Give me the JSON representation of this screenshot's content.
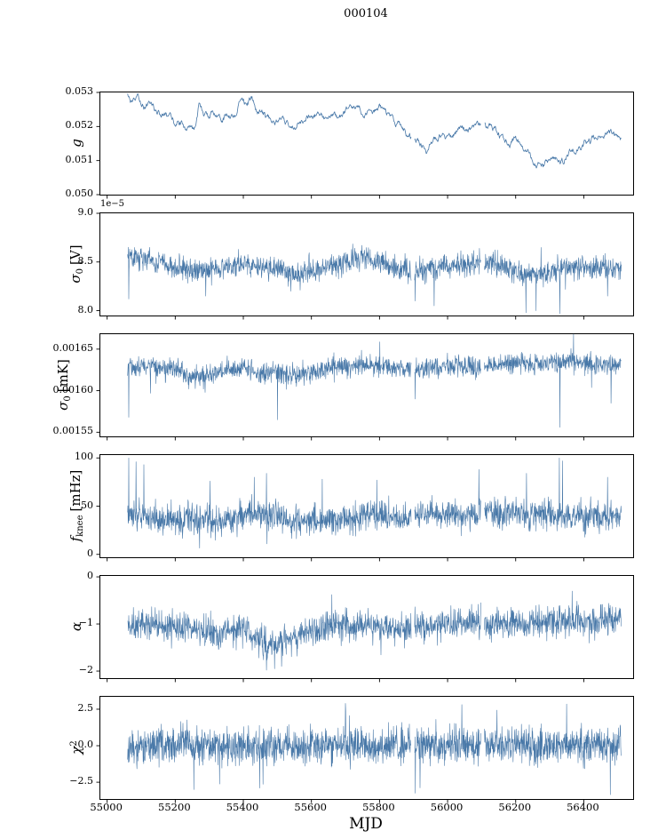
{
  "title": "000104",
  "xlabel": "MJD",
  "color": "#4878a8",
  "axis": {
    "xlim": [
      54980,
      56545
    ],
    "xticks": [
      55000,
      55200,
      55400,
      55600,
      55800,
      56000,
      56200,
      56400
    ],
    "data_xrange": [
      55060,
      56510
    ],
    "data_gaps": [
      [
        55893,
        55903
      ],
      [
        56098,
        56108
      ]
    ]
  },
  "chart_data": [
    {
      "name": "g",
      "type": "line",
      "ylabel": {
        "text": "g",
        "sub": "",
        "sup": "",
        "unit": ""
      },
      "offset_text": "",
      "ylim": [
        0.05,
        0.053
      ],
      "ytick_values": [
        0.05,
        0.051,
        0.052,
        0.053
      ],
      "ytick_labels": [
        "0.050",
        "0.051",
        "0.052",
        "0.053"
      ],
      "trend": {
        "x": [
          55060,
          55075,
          55090,
          55110,
          55130,
          55150,
          55170,
          55200,
          55220,
          55240,
          55255,
          55270,
          55285,
          55300,
          55320,
          55340,
          55360,
          55380,
          55395,
          55410,
          55425,
          55440,
          55460,
          55480,
          55500,
          55520,
          55540,
          55560,
          55580,
          55600,
          55620,
          55640,
          55660,
          55680,
          55700,
          55720,
          55740,
          55760,
          55780,
          55800,
          55820,
          55840,
          55860,
          55880,
          55900,
          55920,
          55940,
          55960,
          55980,
          56000,
          56020,
          56040,
          56060,
          56080,
          56100,
          56120,
          56140,
          56160,
          56180,
          56200,
          56220,
          56240,
          56260,
          56280,
          56300,
          56320,
          56340,
          56360,
          56380,
          56400,
          56420,
          56440,
          56460,
          56480,
          56500
        ],
        "y": [
          0.0529,
          0.0526,
          0.0528,
          0.0526,
          0.0527,
          0.0524,
          0.0523,
          0.0521,
          0.0521,
          0.0519,
          0.0518,
          0.0527,
          0.0523,
          0.0523,
          0.0524,
          0.0523,
          0.0524,
          0.0523,
          0.0529,
          0.0526,
          0.0528,
          0.0524,
          0.0523,
          0.0522,
          0.0522,
          0.0521,
          0.052,
          0.0521,
          0.0522,
          0.0523,
          0.0524,
          0.0522,
          0.0522,
          0.0523,
          0.0524,
          0.0525,
          0.0525,
          0.0524,
          0.0524,
          0.0526,
          0.0524,
          0.0522,
          0.052,
          0.0518,
          0.0516,
          0.0515,
          0.0513,
          0.0516,
          0.0517,
          0.0517,
          0.0518,
          0.0519,
          0.0519,
          0.052,
          0.0521,
          0.052,
          0.052,
          0.0516,
          0.0515,
          0.0516,
          0.0514,
          0.0512,
          0.0509,
          0.0508,
          0.051,
          0.0511,
          0.051,
          0.0513,
          0.0514,
          0.0515,
          0.0516,
          0.0516,
          0.0517,
          0.0518,
          0.0517
        ]
      },
      "noise": 0.00012,
      "smooth": true,
      "samples": 1100,
      "spikes": []
    },
    {
      "name": "sigma0_V",
      "type": "line",
      "ylabel": {
        "text": "σ",
        "sub": "0",
        "sup": "",
        "unit": "[V]"
      },
      "offset_text": "1e−5",
      "ylim": [
        7.95,
        9.0
      ],
      "ytick_values": [
        8.0,
        8.5,
        9.0
      ],
      "ytick_labels": [
        "8.0",
        "8.5",
        "9.0"
      ],
      "trend": {
        "x": [
          55060,
          55100,
          55150,
          55200,
          55250,
          55300,
          55350,
          55400,
          55450,
          55500,
          55550,
          55600,
          55650,
          55700,
          55750,
          55800,
          55850,
          55900,
          55950,
          56000,
          56050,
          56100,
          56150,
          56200,
          56250,
          56300,
          56350,
          56400,
          56450,
          56500
        ],
        "y": [
          8.55,
          8.55,
          8.5,
          8.45,
          8.4,
          8.44,
          8.45,
          8.48,
          8.45,
          8.43,
          8.38,
          8.4,
          8.45,
          8.5,
          8.53,
          8.5,
          8.45,
          8.4,
          8.43,
          8.45,
          8.48,
          8.5,
          8.47,
          8.4,
          8.36,
          8.4,
          8.44,
          8.45,
          8.45,
          8.45
        ]
      },
      "noise": 0.1,
      "smooth": false,
      "samples": 1700,
      "spikes": [
        [
          55063,
          8.12
        ],
        [
          55290,
          8.15
        ],
        [
          55540,
          8.2
        ],
        [
          55905,
          8.1
        ],
        [
          55960,
          8.05
        ],
        [
          56230,
          7.98
        ],
        [
          56260,
          8.0
        ],
        [
          56330,
          7.97
        ],
        [
          56470,
          8.15
        ]
      ]
    },
    {
      "name": "sigma0_mK",
      "type": "line",
      "ylabel": {
        "text": "σ",
        "sub": "0",
        "sup": "",
        "unit": "[mK]"
      },
      "offset_text": "",
      "ylim": [
        0.001545,
        0.001668
      ],
      "ytick_values": [
        0.00155,
        0.0016,
        0.00165
      ],
      "ytick_labels": [
        "0.00155",
        "0.00160",
        "0.00165"
      ],
      "trend": {
        "x": [
          55060,
          55100,
          55150,
          55200,
          55250,
          55300,
          55350,
          55400,
          55450,
          55500,
          55550,
          55600,
          55650,
          55700,
          55750,
          55800,
          55850,
          55900,
          55950,
          56000,
          56050,
          56100,
          56150,
          56200,
          56250,
          56300,
          56350,
          56400,
          56450,
          56500
        ],
        "y": [
          0.001628,
          0.00163,
          0.001628,
          0.001626,
          0.001615,
          0.001619,
          0.001625,
          0.001627,
          0.001621,
          0.001622,
          0.00162,
          0.001622,
          0.001627,
          0.00163,
          0.001632,
          0.00163,
          0.001628,
          0.001625,
          0.001628,
          0.00163,
          0.00163,
          0.00163,
          0.001632,
          0.001633,
          0.001632,
          0.001634,
          0.001633,
          0.001633,
          0.001632,
          0.001632
        ]
      },
      "noise": 1.05e-05,
      "smooth": false,
      "samples": 1700,
      "spikes": [
        [
          55063,
          0.001568
        ],
        [
          55283,
          0.001602
        ],
        [
          55288,
          0.001598
        ],
        [
          55500,
          0.001565
        ],
        [
          55905,
          0.00159
        ],
        [
          56100,
          0.001588
        ],
        [
          56330,
          0.001556
        ],
        [
          56480,
          0.001585
        ]
      ]
    },
    {
      "name": "f_knee",
      "type": "line",
      "ylabel": {
        "text": "f",
        "sub": "knee",
        "sup": "",
        "unit": "[mHz]"
      },
      "offset_text": "",
      "ylim": [
        -3,
        103
      ],
      "ytick_values": [
        0,
        50,
        100
      ],
      "ytick_labels": [
        "0",
        "50",
        "100"
      ],
      "trend": {
        "x": [
          55060,
          55100,
          55150,
          55200,
          55250,
          55300,
          55350,
          55400,
          55450,
          55500,
          55550,
          55600,
          55650,
          55700,
          55750,
          55800,
          55850,
          55900,
          55950,
          56000,
          56050,
          56100,
          56150,
          56200,
          56250,
          56300,
          56350,
          56400,
          56450,
          56500
        ],
        "y": [
          40,
          42,
          38,
          36,
          38,
          36,
          35,
          40,
          42,
          38,
          33,
          35,
          35,
          38,
          40,
          42,
          38,
          40,
          40,
          40,
          42,
          45,
          42,
          45,
          42,
          40,
          40,
          38,
          40,
          42
        ]
      },
      "noise": 13,
      "smooth": false,
      "samples": 1700,
      "spikes": [
        [
          55063,
          100
        ],
        [
          55085,
          96
        ],
        [
          55108,
          93
        ],
        [
          55302,
          76
        ],
        [
          55432,
          80
        ],
        [
          55468,
          84
        ],
        [
          55632,
          78
        ],
        [
          55792,
          77
        ],
        [
          56092,
          88
        ],
        [
          56232,
          84
        ],
        [
          56328,
          100
        ],
        [
          56338,
          97
        ],
        [
          56470,
          80
        ]
      ]
    },
    {
      "name": "alpha",
      "type": "line",
      "ylabel": {
        "text": "α",
        "sub": "",
        "sup": "",
        "unit": ""
      },
      "offset_text": "",
      "ylim": [
        -2.15,
        0.02
      ],
      "ytick_values": [
        0,
        -1,
        -2
      ],
      "ytick_labels": [
        "0",
        "−1",
        "−2"
      ],
      "trend": {
        "x": [
          55060,
          55100,
          55150,
          55200,
          55250,
          55300,
          55350,
          55400,
          55450,
          55500,
          55550,
          55600,
          55650,
          55700,
          55750,
          55800,
          55850,
          55900,
          55950,
          56000,
          56050,
          56100,
          56150,
          56200,
          56250,
          56300,
          56350,
          56400,
          56450,
          56500
        ],
        "y": [
          -1.05,
          -1.0,
          -1.05,
          -1.1,
          -1.1,
          -1.2,
          -1.15,
          -1.1,
          -1.35,
          -1.45,
          -1.3,
          -1.1,
          -1.05,
          -1.0,
          -1.05,
          -1.05,
          -1.1,
          -1.05,
          -1.05,
          -1.0,
          -1.0,
          -0.95,
          -1.0,
          -1.0,
          -0.95,
          -0.95,
          -0.95,
          -0.95,
          -0.9,
          -0.9
        ]
      },
      "noise": 0.27,
      "smooth": false,
      "samples": 1700,
      "spikes": [
        [
          55468,
          -1.98
        ],
        [
          55492,
          -1.95
        ],
        [
          55512,
          -1.9
        ],
        [
          56102,
          -0.35
        ]
      ]
    },
    {
      "name": "chi2",
      "type": "line",
      "ylabel": {
        "text": "χ",
        "sub": "",
        "sup": "2",
        "unit": ""
      },
      "offset_text": "",
      "ylim": [
        -3.65,
        3.35
      ],
      "ytick_values": [
        2.5,
        0.0,
        -2.5
      ],
      "ytick_labels": [
        "2.5",
        "0.0",
        "−2.5"
      ],
      "trend": {
        "x": [
          55060,
          55400,
          55800,
          56200,
          56500
        ],
        "y": [
          0.05,
          0.0,
          0.05,
          0.0,
          0.05
        ]
      },
      "noise": 1.05,
      "smooth": false,
      "samples": 1900,
      "spikes": [
        [
          55255,
          -3.0
        ],
        [
          55448,
          -2.9
        ],
        [
          55700,
          2.9
        ],
        [
          55905,
          -3.25
        ],
        [
          56105,
          -2.95
        ],
        [
          56350,
          2.85
        ],
        [
          56478,
          -3.35
        ]
      ]
    }
  ]
}
